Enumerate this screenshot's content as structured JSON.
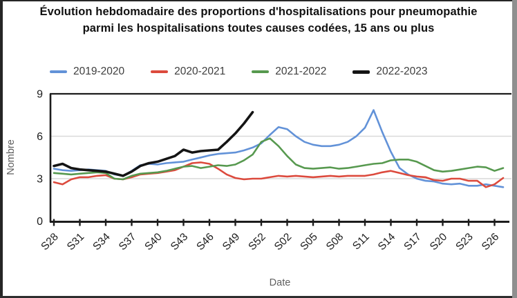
{
  "title": "Évolution hebdomadaire des proportions d'hospitalisations pour pneumopathie parmi les hospitalisations toutes causes codées, 15 ans ou plus",
  "colors": {
    "grid": "#d9d9d9",
    "axis": "#1c1c1c",
    "tick_label": "#1c1c1c",
    "axis_title": "#5f5f5f",
    "title_text": "#111111",
    "legend_text": "#3d3d3d",
    "background": "#ffffff"
  },
  "chart_data": {
    "type": "line",
    "title": "Évolution hebdomadaire des proportions d'hospitalisations pour pneumopathie parmi les hospitalisations toutes causes codées, 15 ans ou plus",
    "xlabel": "Date",
    "ylabel": "Nombre",
    "ylim": [
      0,
      9
    ],
    "yticks": [
      0,
      3,
      6,
      9
    ],
    "gridlines_y": [
      3,
      6
    ],
    "grid": "horizontal-only",
    "legend_position": "top",
    "x_tick_every": 3,
    "categories": [
      "S28",
      "S29",
      "S30",
      "S31",
      "S32",
      "S33",
      "S34",
      "S35",
      "S36",
      "S37",
      "S38",
      "S39",
      "S40",
      "S41",
      "S42",
      "S43",
      "S44",
      "S45",
      "S46",
      "S47",
      "S48",
      "S49",
      "S50",
      "S51",
      "S52",
      "S53",
      "S01",
      "S02",
      "S03",
      "S04",
      "S05",
      "S06",
      "S07",
      "S08",
      "S09",
      "S10",
      "S11",
      "S12",
      "S13",
      "S14",
      "S15",
      "S16",
      "S17",
      "S18",
      "S19",
      "S20",
      "S21",
      "S22",
      "S23",
      "S24",
      "S25",
      "S26",
      "S27"
    ],
    "x_tick_labels_shown": [
      "S28",
      "S31",
      "S34",
      "S37",
      "S40",
      "S43",
      "S46",
      "S49",
      "S52",
      "S02",
      "S05",
      "S08",
      "S11",
      "S14",
      "S17",
      "S20",
      "S23",
      "S26"
    ],
    "series": [
      {
        "name": "2019-2020",
        "color": "#6292d8",
        "line_width": 2.6,
        "values": [
          3.7,
          3.6,
          3.55,
          3.6,
          3.65,
          3.6,
          3.55,
          3.3,
          3.2,
          3.55,
          3.95,
          4.05,
          4.0,
          4.1,
          4.15,
          4.2,
          4.35,
          4.5,
          4.65,
          4.75,
          4.8,
          4.85,
          5.0,
          5.2,
          5.5,
          6.1,
          6.65,
          6.5,
          6.0,
          5.6,
          5.4,
          5.3,
          5.3,
          5.4,
          5.6,
          6.0,
          6.6,
          7.85,
          6.3,
          4.9,
          3.75,
          3.3,
          3.0,
          2.85,
          2.8,
          2.65,
          2.6,
          2.65,
          2.5,
          2.5,
          2.6,
          2.5,
          2.4
        ]
      },
      {
        "name": "2020-2021",
        "color": "#dc4a3d",
        "line_width": 2.6,
        "values": [
          2.75,
          2.6,
          2.95,
          3.1,
          3.1,
          3.2,
          3.25,
          3.0,
          2.95,
          3.1,
          3.3,
          3.35,
          3.4,
          3.5,
          3.6,
          3.85,
          4.1,
          4.15,
          4.05,
          3.7,
          3.3,
          3.05,
          2.95,
          3.0,
          3.0,
          3.1,
          3.2,
          3.15,
          3.2,
          3.15,
          3.1,
          3.15,
          3.2,
          3.15,
          3.2,
          3.2,
          3.2,
          3.3,
          3.45,
          3.55,
          3.4,
          3.25,
          3.15,
          3.1,
          2.9,
          2.85,
          3.0,
          3.0,
          2.85,
          2.85,
          2.4,
          2.6,
          3.05
        ]
      },
      {
        "name": "2021-2022",
        "color": "#57994f",
        "line_width": 2.6,
        "values": [
          3.4,
          3.35,
          3.3,
          3.35,
          3.4,
          3.45,
          3.4,
          3.0,
          2.95,
          3.2,
          3.35,
          3.4,
          3.45,
          3.55,
          3.7,
          3.85,
          3.9,
          3.75,
          3.85,
          3.95,
          3.9,
          4.0,
          4.3,
          4.7,
          5.6,
          5.85,
          5.3,
          4.6,
          4.0,
          3.75,
          3.7,
          3.75,
          3.8,
          3.7,
          3.75,
          3.85,
          3.95,
          4.05,
          4.1,
          4.3,
          4.35,
          4.35,
          4.2,
          3.9,
          3.6,
          3.5,
          3.55,
          3.65,
          3.75,
          3.85,
          3.8,
          3.55,
          3.75
        ]
      },
      {
        "name": "2022-2023",
        "color": "#141414",
        "line_width": 3.6,
        "values": [
          3.9,
          4.05,
          3.75,
          3.65,
          3.6,
          3.55,
          3.5,
          3.35,
          3.2,
          3.5,
          3.9,
          4.1,
          4.2,
          4.4,
          4.6,
          5.05,
          4.85,
          4.95,
          5.0,
          5.05,
          5.6,
          6.2,
          6.9,
          7.7,
          null,
          null,
          null,
          null,
          null,
          null,
          null,
          null,
          null,
          null,
          null,
          null,
          null,
          null,
          null,
          null,
          null,
          null,
          null,
          null,
          null,
          null,
          null,
          null,
          null,
          null,
          null,
          null,
          null
        ]
      }
    ]
  }
}
